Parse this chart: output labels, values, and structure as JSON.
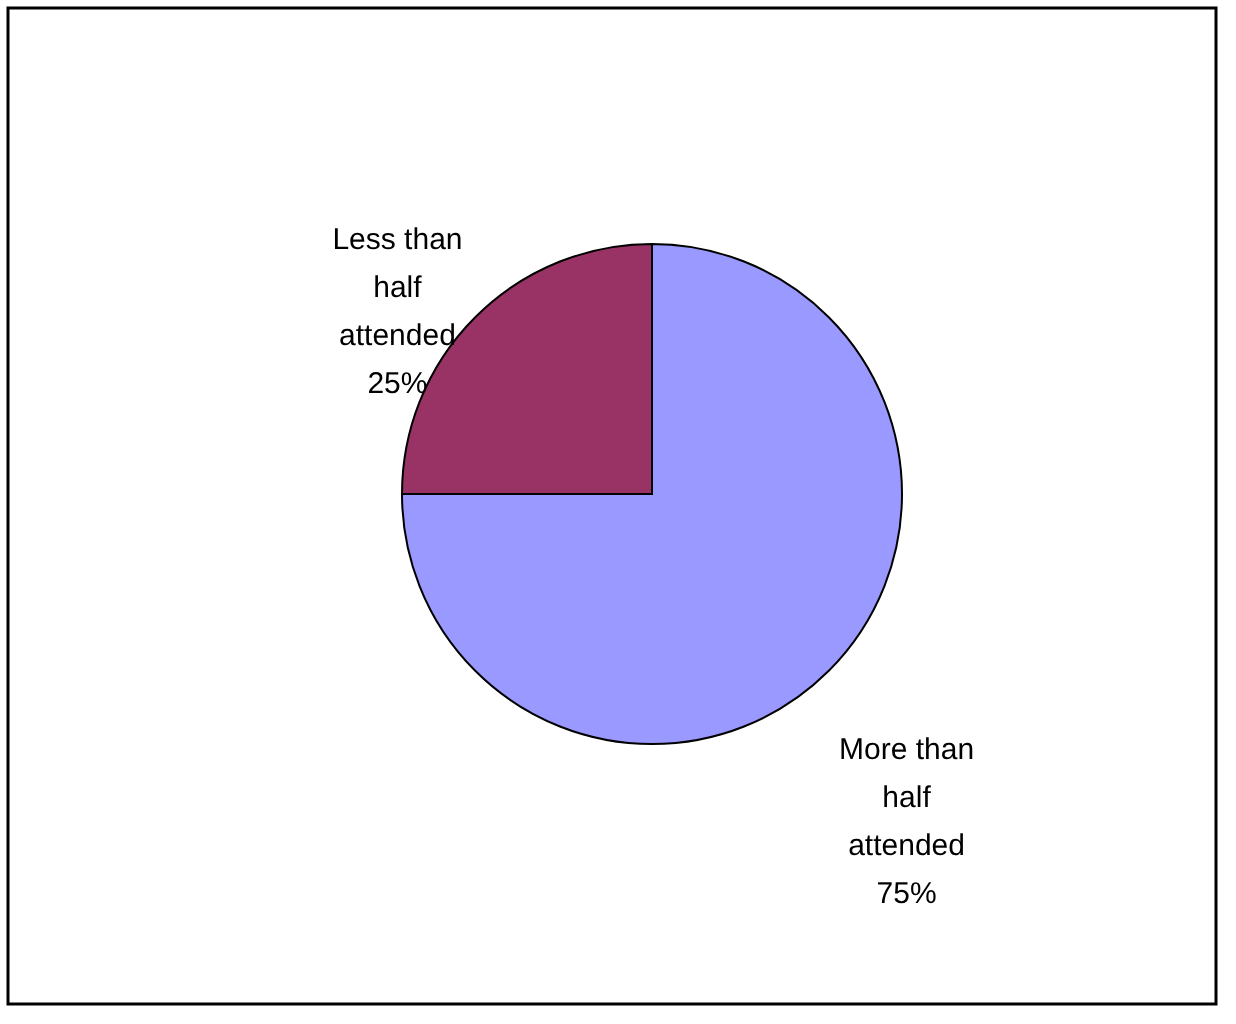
{
  "chart_data": {
    "type": "pie",
    "categories": [
      "More than half attended",
      "Less than half attended"
    ],
    "values": [
      75,
      25
    ],
    "colors": [
      "#9999ff",
      "#993366"
    ],
    "value_labels": [
      "75%",
      "25%"
    ]
  }
}
